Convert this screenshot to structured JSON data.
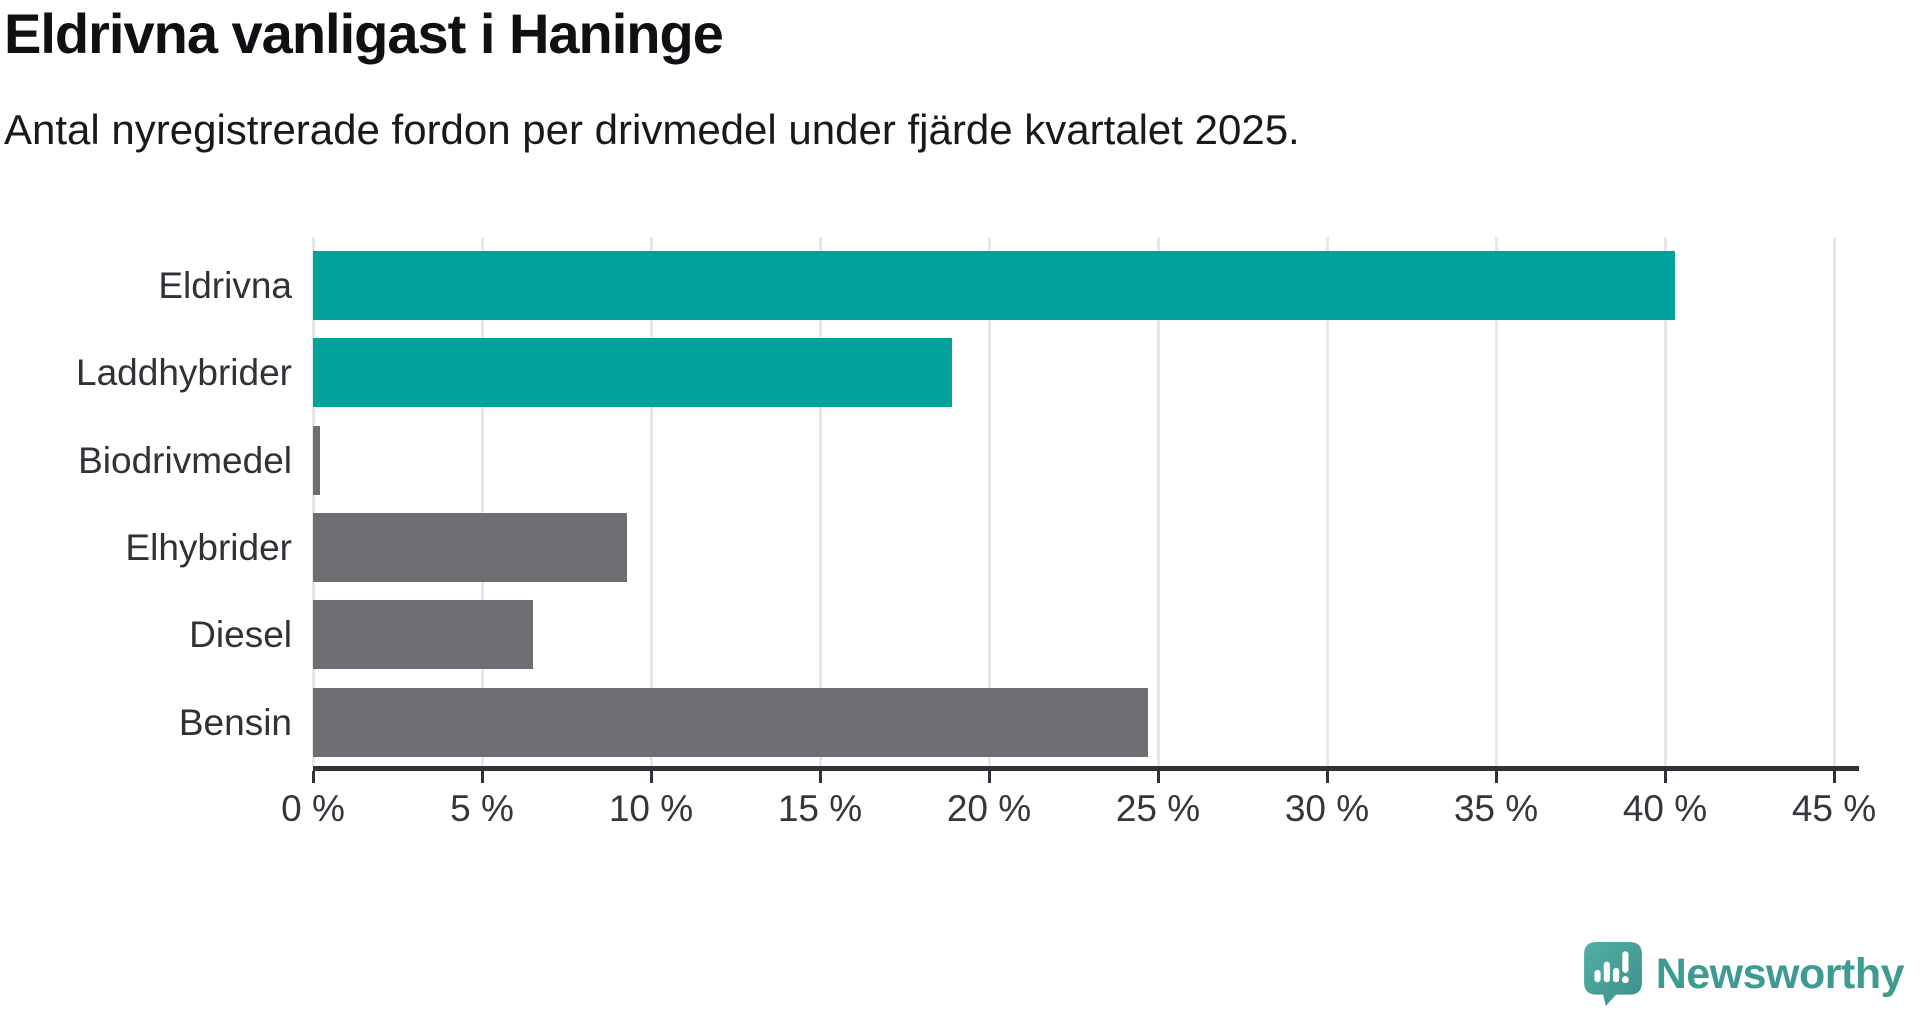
{
  "header": {
    "title": "Eldrivna vanligast i Haninge",
    "subtitle": "Antal nyregistrerade fordon per drivmedel under fjärde kvartalet 2025."
  },
  "chart_data": {
    "type": "bar",
    "orientation": "horizontal",
    "title": "Eldrivna vanligast i Haninge",
    "subtitle": "Antal nyregistrerade fordon per drivmedel under fjärde kvartalet 2025.",
    "categories": [
      "Eldrivna",
      "Laddhybrider",
      "Biodrivmedel",
      "Elhybrider",
      "Diesel",
      "Bensin"
    ],
    "values": [
      40.3,
      18.9,
      0.2,
      9.3,
      6.5,
      24.7
    ],
    "unit": "%",
    "bar_colors": [
      "#00a29a",
      "#00a29a",
      "#6d6d73",
      "#6d6d73",
      "#6d6d73",
      "#6d6d73"
    ],
    "highlight_color": "#00a29a",
    "base_color": "#6d6d73",
    "xlabel": "",
    "ylabel": "",
    "xlim": [
      0,
      45.5
    ],
    "x_ticks": [
      0,
      5,
      10,
      15,
      20,
      25,
      30,
      35,
      40,
      45
    ],
    "x_tick_labels": [
      "0 %",
      "5 %",
      "10 %",
      "15 %",
      "20 %",
      "25 %",
      "30 %",
      "35 %",
      "40 %",
      "45 %"
    ],
    "grid": "vertical-only",
    "grid_color": "#e8e8e8",
    "axis_color": "#2f3338",
    "legend": "none"
  },
  "branding": {
    "logo_text": "Newsworthy",
    "logo_text_color": "#3d9b91",
    "logo_icon": "newsworthy-speech-bubble-chart-icon",
    "logo_icon_color_light": "#52b0a6",
    "logo_icon_color_dark": "#3d8e89"
  }
}
